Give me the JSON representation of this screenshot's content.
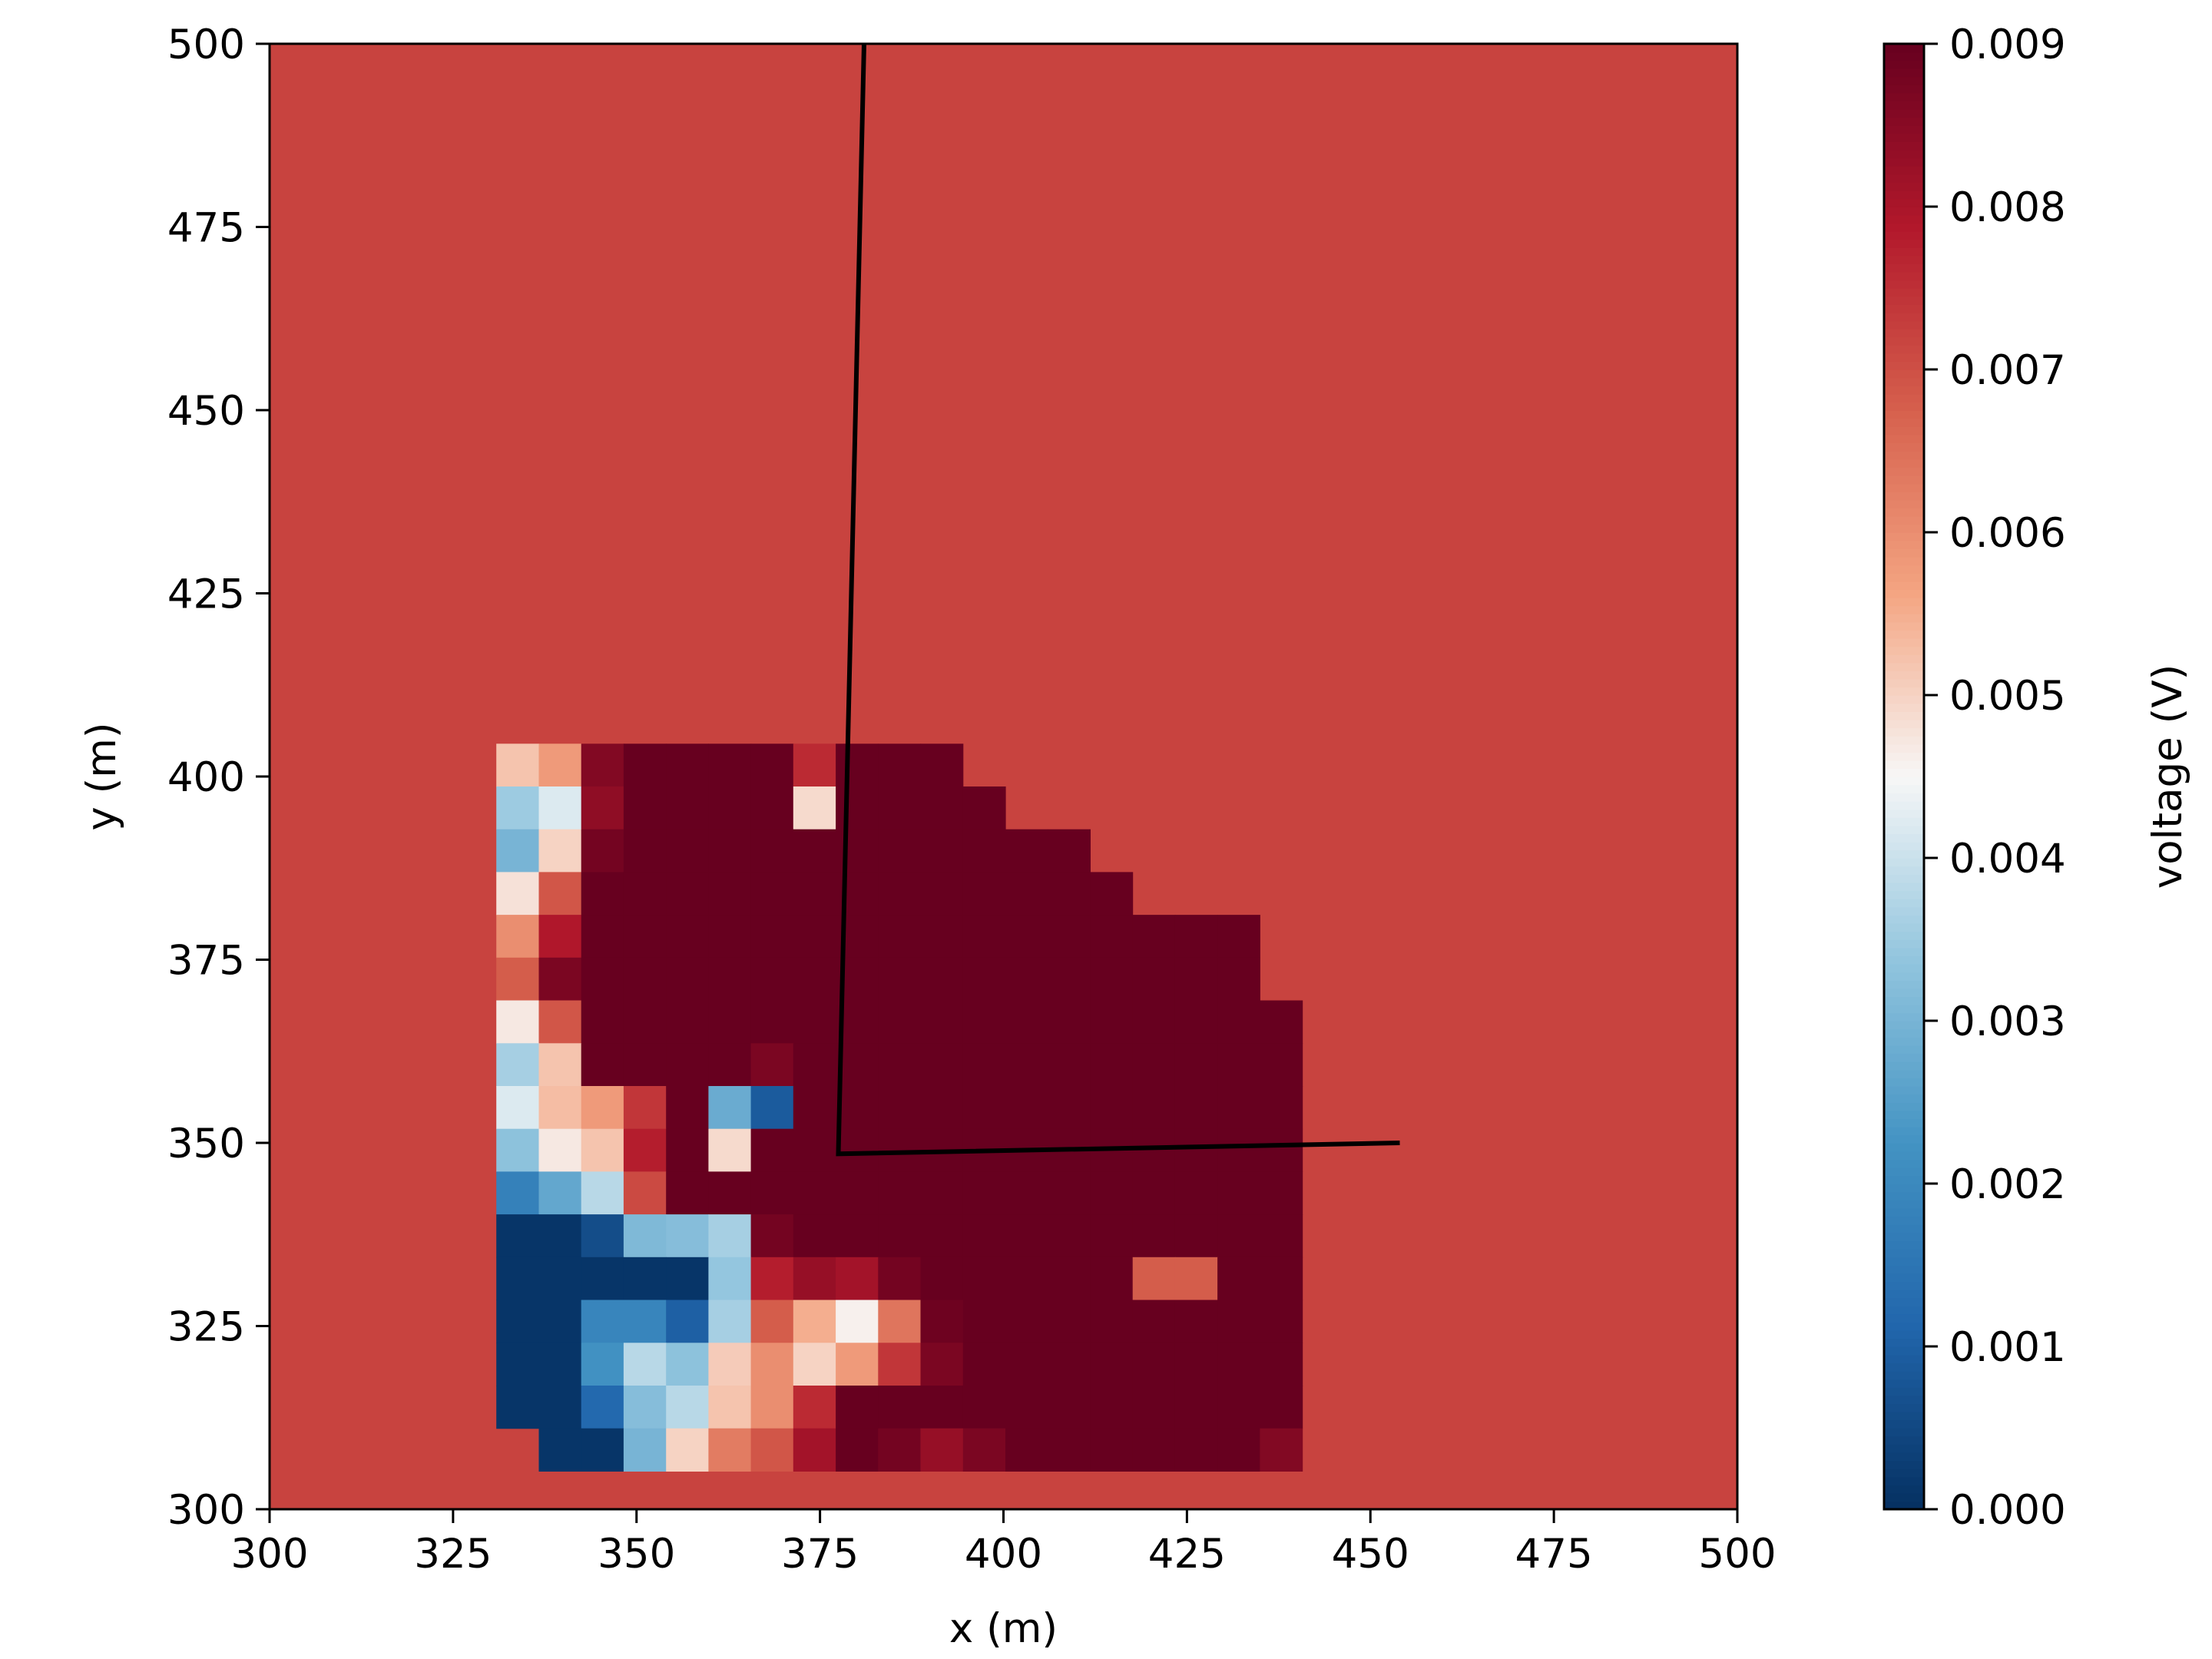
{
  "chart_data": {
    "type": "heatmap",
    "title": "",
    "xlabel": "x (m)",
    "ylabel": "y (m)",
    "xlim": [
      300,
      500
    ],
    "ylim": [
      300,
      500
    ],
    "x_ticks": [
      "300",
      "325",
      "350",
      "375",
      "400",
      "425",
      "450",
      "475",
      "500"
    ],
    "y_ticks": [
      "300",
      "325",
      "350",
      "375",
      "400",
      "425",
      "450",
      "475",
      "500"
    ],
    "colorbar": {
      "label": "voltage (V)",
      "range": [
        0.0,
        0.009
      ],
      "ticks": [
        "0.000",
        "0.001",
        "0.002",
        "0.003",
        "0.004",
        "0.005",
        "0.006",
        "0.007",
        "0.008",
        "0.009"
      ],
      "colormap": "RdBu_r"
    },
    "background_value": 0.0072,
    "grid": {
      "x0": 330.9,
      "y0": 305.2,
      "dx": 5.78,
      "dy": 5.84,
      "cols": 19,
      "rows": 17,
      "row_order": "top-to-bottom",
      "values": [
        [
          0.0052,
          0.0058,
          0.0086,
          0.009,
          0.009,
          0.009,
          0.009,
          0.0076,
          0.009,
          0.009,
          0.009,
          null,
          null,
          null,
          null,
          null,
          null,
          null,
          null
        ],
        [
          0.0035,
          0.0042,
          0.0084,
          0.009,
          0.009,
          0.009,
          0.009,
          0.0049,
          0.009,
          0.009,
          0.009,
          0.009,
          null,
          null,
          null,
          null,
          null,
          null,
          null
        ],
        [
          0.003,
          0.005,
          0.0088,
          0.009,
          0.009,
          0.009,
          0.009,
          0.009,
          0.009,
          0.009,
          0.009,
          0.009,
          0.009,
          0.009,
          null,
          null,
          null,
          null,
          null
        ],
        [
          0.0048,
          0.0069,
          0.009,
          0.009,
          0.009,
          0.009,
          0.009,
          0.009,
          0.009,
          0.009,
          0.009,
          0.009,
          0.009,
          0.009,
          0.009,
          null,
          null,
          null,
          null
        ],
        [
          0.006,
          0.0079,
          0.009,
          0.009,
          0.009,
          0.009,
          0.009,
          0.009,
          0.009,
          0.009,
          0.009,
          0.009,
          0.009,
          0.009,
          0.009,
          0.009,
          0.009,
          0.009,
          null
        ],
        [
          0.0068,
          0.0087,
          0.009,
          0.009,
          0.009,
          0.009,
          0.009,
          0.009,
          0.009,
          0.009,
          0.009,
          0.009,
          0.009,
          0.009,
          0.009,
          0.009,
          0.009,
          0.009,
          null
        ],
        [
          0.0047,
          0.0069,
          0.009,
          0.009,
          0.009,
          0.009,
          0.009,
          0.009,
          0.009,
          0.009,
          0.009,
          0.009,
          0.009,
          0.009,
          0.009,
          0.009,
          0.009,
          0.009,
          0.009
        ],
        [
          0.0036,
          0.0052,
          0.009,
          0.009,
          0.009,
          0.009,
          0.0087,
          0.009,
          0.009,
          0.009,
          0.009,
          0.009,
          0.009,
          0.009,
          0.009,
          0.009,
          0.009,
          0.009,
          0.009
        ],
        [
          0.0042,
          0.0053,
          0.0058,
          0.0074,
          0.009,
          0.0028,
          0.0009,
          0.009,
          0.009,
          0.009,
          0.009,
          0.009,
          0.009,
          0.009,
          0.009,
          0.009,
          0.009,
          0.009,
          0.009
        ],
        [
          0.0033,
          0.0047,
          0.0052,
          0.0078,
          0.009,
          0.0049,
          0.009,
          0.009,
          0.009,
          0.009,
          0.009,
          0.009,
          0.009,
          0.009,
          0.009,
          0.009,
          0.009,
          0.009,
          0.009
        ],
        [
          0.0018,
          0.0027,
          0.0038,
          0.0071,
          0.009,
          0.009,
          0.009,
          0.009,
          0.009,
          0.009,
          0.009,
          0.009,
          0.009,
          0.009,
          0.009,
          0.009,
          0.009,
          0.009,
          0.009
        ],
        [
          0.0001,
          0.0001,
          0.0006,
          0.0031,
          0.0032,
          0.0036,
          0.0088,
          0.009,
          0.009,
          0.009,
          0.009,
          0.009,
          0.009,
          0.009,
          0.009,
          0.009,
          0.009,
          0.009,
          0.009
        ],
        [
          0.0001,
          0.0001,
          0.0001,
          0.0001,
          0.0001,
          0.0034,
          0.0078,
          0.0083,
          0.0081,
          0.0088,
          0.009,
          0.009,
          0.009,
          0.009,
          0.009,
          0.0068,
          0.0068,
          0.009,
          0.009
        ],
        [
          0.0001,
          0.0001,
          0.0019,
          0.0019,
          0.001,
          0.0036,
          0.0068,
          0.0055,
          0.0046,
          0.0064,
          0.0089,
          0.009,
          0.009,
          0.009,
          0.009,
          0.009,
          0.009,
          0.009,
          0.009
        ],
        [
          0.0001,
          0.0001,
          0.0022,
          0.0038,
          0.0033,
          0.0051,
          0.006,
          0.005,
          0.0058,
          0.0074,
          0.0087,
          0.009,
          0.009,
          0.009,
          0.009,
          0.009,
          0.009,
          0.009,
          0.009
        ],
        [
          0.0001,
          0.0001,
          0.0012,
          0.0032,
          0.0038,
          0.0052,
          0.006,
          0.0076,
          0.009,
          0.009,
          0.009,
          0.009,
          0.009,
          0.009,
          0.009,
          0.009,
          0.009,
          0.009,
          0.009
        ],
        [
          null,
          0.0001,
          0.0001,
          0.003,
          0.005,
          0.0063,
          0.0069,
          0.0081,
          0.009,
          0.0088,
          0.0083,
          0.0087,
          0.009,
          0.009,
          0.009,
          0.009,
          0.009,
          0.009,
          0.0086
        ]
      ]
    },
    "overlay_line": {
      "color": "#000000",
      "x": [
        381,
        377.5,
        454
      ],
      "y": [
        500,
        348.5,
        350
      ]
    }
  }
}
